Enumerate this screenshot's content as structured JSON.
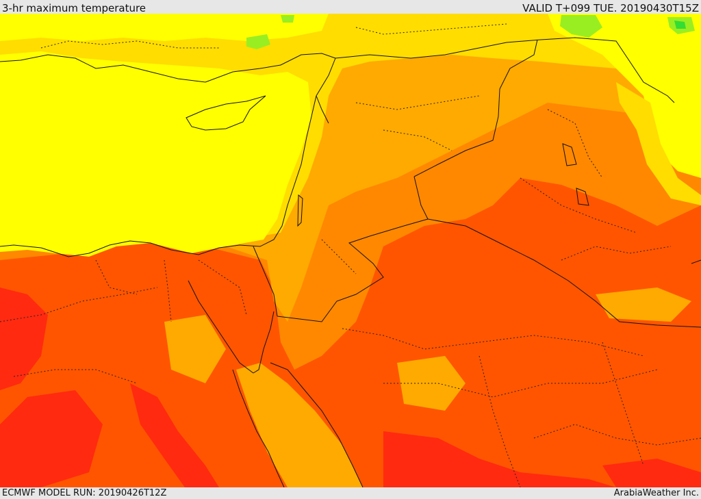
{
  "header": {
    "title": "3-hr maximum temperature",
    "valid": "VALID T+099 TUE. 20190430T15Z"
  },
  "footer": {
    "model_run": "ECMWF MODEL RUN: 20190426T12Z",
    "credit": "ArabiaWeather Inc."
  },
  "palette": {
    "cool_green": "#33dd33",
    "light_green": "#99ee22",
    "yellow": "#ffff00",
    "gold": "#ffdd00",
    "amber": "#ffaa00",
    "orange": "#ff8800",
    "red_orange": "#ff5500",
    "red": "#ff2a10"
  }
}
